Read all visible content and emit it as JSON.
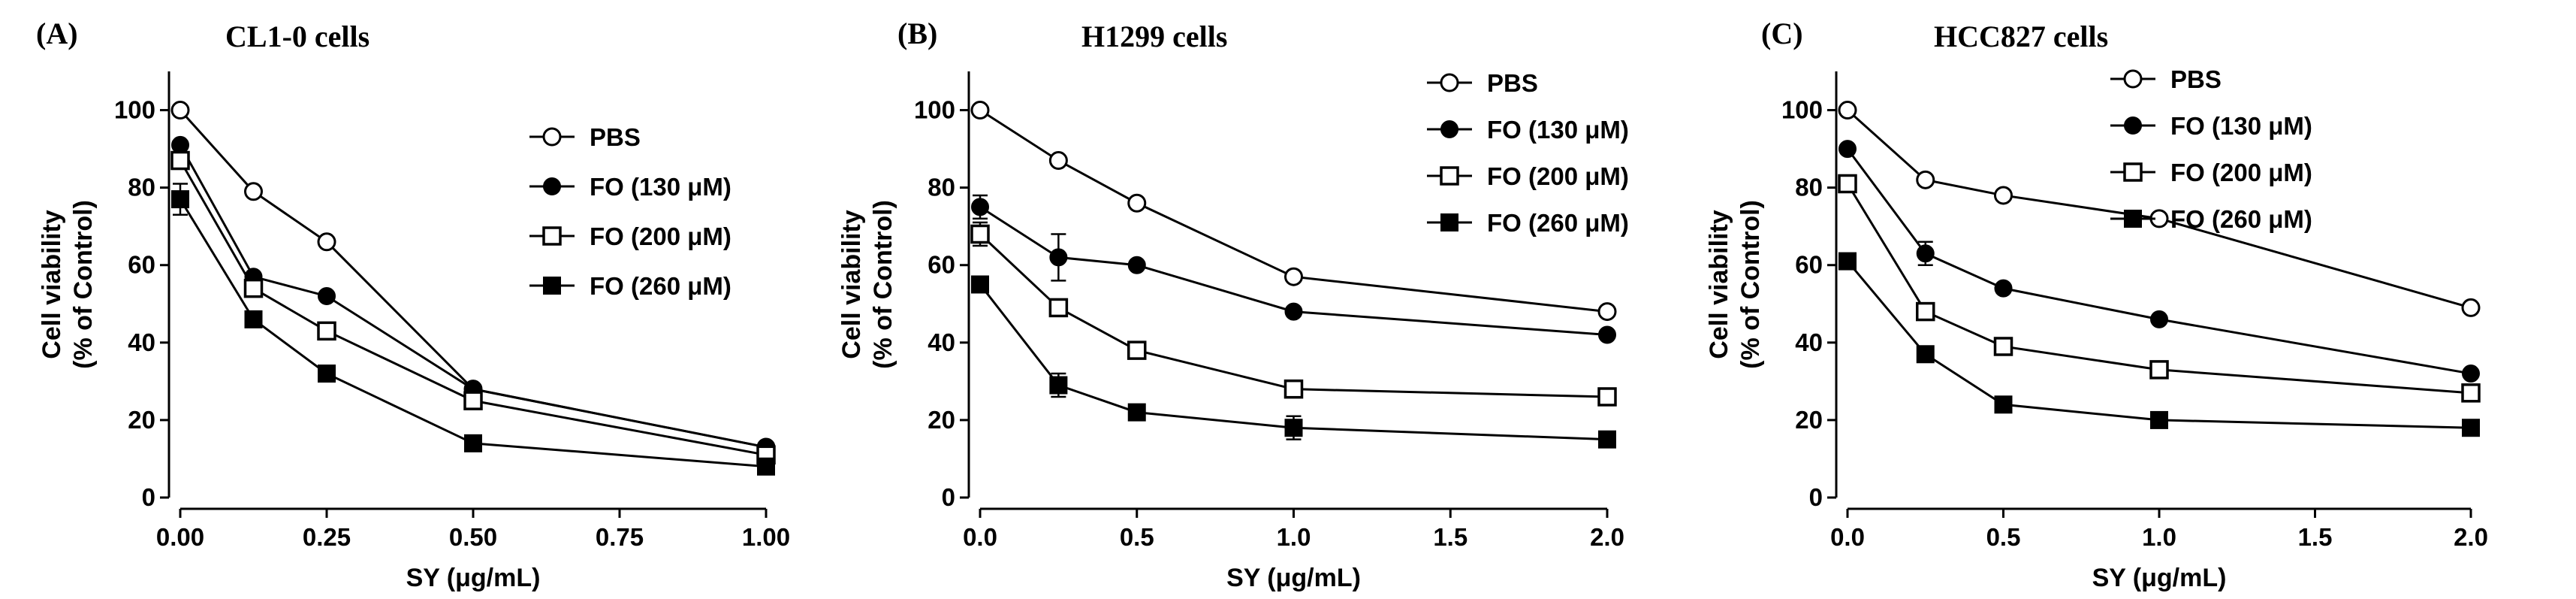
{
  "chart_data": [
    {
      "type": "line",
      "panel_label": "(A)",
      "title": "CL1-0 cells",
      "xlabel": "SY (μg/mL)",
      "ylabel_line1": "Cell viability",
      "ylabel_line2": "(% of Control)",
      "xlim": [
        0,
        1.0
      ],
      "ylim": [
        0,
        110
      ],
      "xticks": [
        0,
        0.25,
        0.5,
        0.75,
        1.0
      ],
      "xtick_labels": [
        "0.00",
        "0.25",
        "0.50",
        "0.75",
        "1.00"
      ],
      "yticks": [
        0,
        20,
        40,
        60,
        80,
        100
      ],
      "ytick_labels": [
        "0",
        "20",
        "40",
        "60",
        "80",
        "100"
      ],
      "legend_position": "right",
      "x": [
        0,
        0.125,
        0.25,
        0.5,
        1.0
      ],
      "series": [
        {
          "name": "PBS",
          "marker": "open-circle",
          "values": [
            100,
            79,
            66,
            28,
            13
          ],
          "errors": [
            0,
            0,
            0,
            0,
            0
          ]
        },
        {
          "name": "FO (130 μM)",
          "marker": "filled-circle",
          "values": [
            91,
            57,
            52,
            28,
            13
          ],
          "errors": [
            0,
            0,
            0,
            0,
            0
          ]
        },
        {
          "name": "FO (200 μM)",
          "marker": "open-square",
          "values": [
            87,
            54,
            43,
            25,
            11
          ],
          "errors": [
            0,
            0,
            0,
            0,
            0
          ]
        },
        {
          "name": "FO (260 μM)",
          "marker": "filled-square",
          "values": [
            77,
            46,
            32,
            14,
            8
          ],
          "errors": [
            4,
            0,
            0,
            0,
            0
          ]
        }
      ]
    },
    {
      "type": "line",
      "panel_label": "(B)",
      "title": "H1299 cells",
      "xlabel": "SY (μg/mL)",
      "ylabel_line1": "Cell viability",
      "ylabel_line2": "(% of Control)",
      "xlim": [
        0,
        2.0
      ],
      "ylim": [
        0,
        110
      ],
      "xticks": [
        0,
        0.5,
        1.0,
        1.5,
        2.0
      ],
      "xtick_labels": [
        "0.0",
        "0.5",
        "1.0",
        "1.5",
        "2.0"
      ],
      "yticks": [
        0,
        20,
        40,
        60,
        80,
        100
      ],
      "ytick_labels": [
        "0",
        "20",
        "40",
        "60",
        "80",
        "100"
      ],
      "legend_position": "top-right",
      "x": [
        0,
        0.25,
        0.5,
        1.0,
        2.0
      ],
      "series": [
        {
          "name": "PBS",
          "marker": "open-circle",
          "values": [
            100,
            87,
            76,
            57,
            48
          ],
          "errors": [
            0,
            0,
            0,
            0,
            0
          ]
        },
        {
          "name": "FO (130 μM)",
          "marker": "filled-circle",
          "values": [
            75,
            62,
            60,
            48,
            42
          ],
          "errors": [
            3,
            6,
            0,
            0,
            0
          ]
        },
        {
          "name": "FO (200 μM)",
          "marker": "open-square",
          "values": [
            68,
            49,
            38,
            28,
            26
          ],
          "errors": [
            3,
            2,
            0,
            0,
            0
          ]
        },
        {
          "name": "FO (260 μM)",
          "marker": "filled-square",
          "values": [
            55,
            29,
            22,
            18,
            15
          ],
          "errors": [
            0,
            3,
            0,
            3,
            0
          ]
        }
      ]
    },
    {
      "type": "line",
      "panel_label": "(C)",
      "title": "HCC827 cells",
      "xlabel": "SY (μg/mL)",
      "ylabel_line1": "Cell viability",
      "ylabel_line2": "(% of Control)",
      "xlim": [
        0,
        2.0
      ],
      "ylim": [
        0,
        110
      ],
      "xticks": [
        0,
        0.5,
        1.0,
        1.5,
        2.0
      ],
      "xtick_labels": [
        "0.0",
        "0.5",
        "1.0",
        "1.5",
        "2.0"
      ],
      "yticks": [
        0,
        20,
        40,
        60,
        80,
        100
      ],
      "ytick_labels": [
        "0",
        "20",
        "40",
        "60",
        "80",
        "100"
      ],
      "legend_position": "top-right",
      "x": [
        0,
        0.25,
        0.5,
        1.0,
        2.0
      ],
      "series": [
        {
          "name": "PBS",
          "marker": "open-circle",
          "values": [
            100,
            82,
            78,
            72,
            49
          ],
          "errors": [
            0,
            0,
            0,
            0,
            0
          ]
        },
        {
          "name": "FO (130 μM)",
          "marker": "filled-circle",
          "values": [
            90,
            63,
            54,
            46,
            32
          ],
          "errors": [
            0,
            3,
            0,
            0,
            0
          ]
        },
        {
          "name": "FO (200 μM)",
          "marker": "open-square",
          "values": [
            81,
            48,
            39,
            33,
            27
          ],
          "errors": [
            0,
            0,
            0,
            0,
            0
          ]
        },
        {
          "name": "FO (260 μM)",
          "marker": "filled-square",
          "values": [
            61,
            37,
            24,
            20,
            18
          ],
          "errors": [
            0,
            0,
            0,
            0,
            0
          ]
        }
      ]
    }
  ]
}
